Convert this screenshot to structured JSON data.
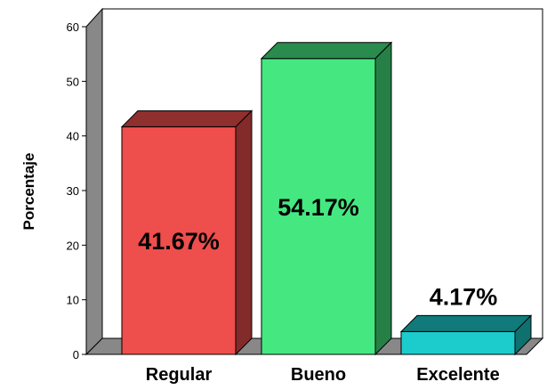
{
  "chart_data": {
    "type": "bar",
    "ylabel": "Porcentaje",
    "xlabel": "",
    "ylim": [
      0,
      60
    ],
    "yticks": [
      0,
      10,
      20,
      30,
      40,
      50,
      60
    ],
    "categories": [
      "Regular",
      "Bueno",
      "Excelente"
    ],
    "values": [
      41.67,
      54.17,
      4.17
    ],
    "data_labels": [
      "41.67%",
      "54.17%",
      "4.17%"
    ],
    "colors": [
      "#ee4e4c",
      "#45e880",
      "#1ccccc"
    ],
    "grid": false,
    "legend": "none",
    "style": "3d"
  }
}
